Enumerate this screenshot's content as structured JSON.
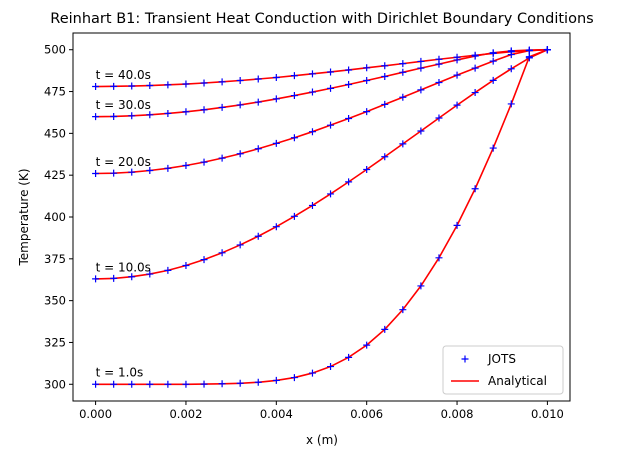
{
  "chart_data": {
    "type": "line",
    "title": "Reinhart B1: Transient Heat Conduction with Dirichlet Boundary Conditions",
    "xlabel": "x (m)",
    "ylabel": "Temperature (K)",
    "xlim": [
      -0.0005,
      0.0105
    ],
    "ylim": [
      290,
      510
    ],
    "xticks": [
      0.0,
      0.002,
      0.004,
      0.006,
      0.008,
      0.01
    ],
    "xtick_labels": [
      "0.000",
      "0.002",
      "0.004",
      "0.006",
      "0.008",
      "0.010"
    ],
    "yticks": [
      300,
      325,
      350,
      375,
      400,
      425,
      450,
      475,
      500
    ],
    "ytick_labels": [
      "300",
      "325",
      "350",
      "375",
      "400",
      "425",
      "450",
      "475",
      "500"
    ],
    "grid": false,
    "legend_position": "lower-right",
    "legend": [
      {
        "label": "JOTS",
        "marker": "+",
        "color": "#0000ff"
      },
      {
        "label": "Analytical",
        "marker": "line",
        "color": "#ff0000"
      }
    ],
    "x": [
      0.0,
      0.0004,
      0.0008,
      0.0012,
      0.0016,
      0.002,
      0.0024,
      0.0028,
      0.0032,
      0.0036,
      0.004,
      0.0044,
      0.0048,
      0.0052,
      0.0056,
      0.006,
      0.0064,
      0.0068,
      0.0072,
      0.0076,
      0.008,
      0.0084,
      0.0088,
      0.0092,
      0.0096,
      0.01
    ],
    "series": [
      {
        "label": "t = 1.0s",
        "label_anchor": [
          0.0,
          304.5
        ],
        "values": [
          300.0,
          300.0,
          300.0,
          300.0,
          300.0,
          300.0,
          300.1,
          300.3,
          300.6,
          301.2,
          302.3,
          304.0,
          306.7,
          310.6,
          316.1,
          323.4,
          332.8,
          344.6,
          358.8,
          375.6,
          395.0,
          416.9,
          441.2,
          467.6,
          495.8,
          500.0
        ]
      },
      {
        "label": "t = 10.0s",
        "label_anchor": [
          0.0,
          367.5
        ],
        "values": [
          363.0,
          363.3,
          364.3,
          365.9,
          368.1,
          371.0,
          374.5,
          378.6,
          383.3,
          388.5,
          394.2,
          400.4,
          406.9,
          413.8,
          421.0,
          428.4,
          436.0,
          443.7,
          451.4,
          459.2,
          466.9,
          474.4,
          481.7,
          488.6,
          495.1,
          500.0
        ]
      },
      {
        "label": "t = 20.0s",
        "label_anchor": [
          0.0,
          430.5
        ],
        "values": [
          426.0,
          426.2,
          426.8,
          427.8,
          429.1,
          430.8,
          432.8,
          435.2,
          437.8,
          440.8,
          444.0,
          447.4,
          451.0,
          454.9,
          458.9,
          463.0,
          467.3,
          471.6,
          476.0,
          480.4,
          484.8,
          489.0,
          493.2,
          497.1,
          499.5,
          500.0
        ]
      },
      {
        "label": "t = 30.0s",
        "label_anchor": [
          0.0,
          464.5
        ],
        "values": [
          460.0,
          460.1,
          460.5,
          461.1,
          461.9,
          462.9,
          464.1,
          465.5,
          467.0,
          468.7,
          470.6,
          472.6,
          474.7,
          476.9,
          479.2,
          481.6,
          484.0,
          486.5,
          489.0,
          491.4,
          493.9,
          496.2,
          498.2,
          499.3,
          499.8,
          500.0
        ]
      },
      {
        "label": "t = 40.0s",
        "label_anchor": [
          0.0,
          482.5
        ],
        "values": [
          478.0,
          478.1,
          478.3,
          478.6,
          479.0,
          479.5,
          480.1,
          480.8,
          481.6,
          482.5,
          483.4,
          484.5,
          485.6,
          486.7,
          487.9,
          489.2,
          490.4,
          491.7,
          493.0,
          494.3,
          495.5,
          496.7,
          497.8,
          498.8,
          499.5,
          500.0
        ]
      }
    ]
  }
}
